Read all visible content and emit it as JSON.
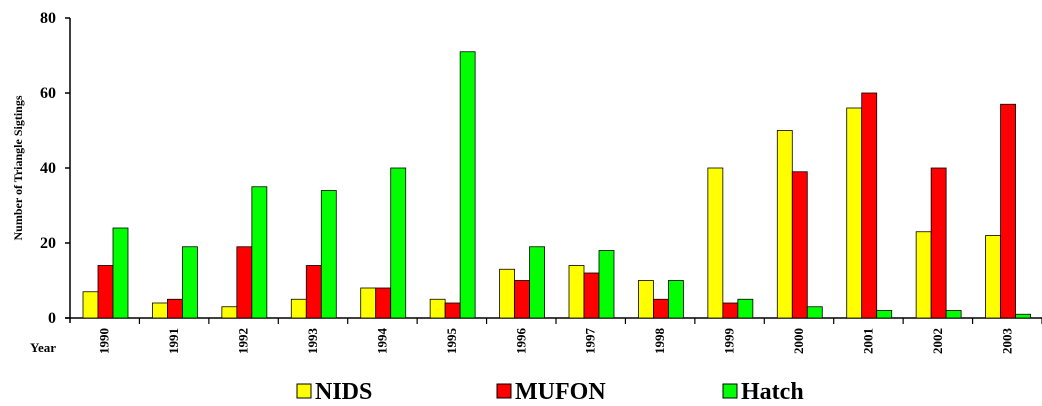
{
  "chart_data": {
    "type": "bar",
    "title": "",
    "xlabel": "Year",
    "ylabel": "Number of Triangle Sigtings",
    "ylim": [
      0,
      80
    ],
    "yticks": [
      0,
      20,
      40,
      60,
      80
    ],
    "grid": false,
    "legend_position": "bottom",
    "categories": [
      "1990",
      "1991",
      "1992",
      "1993",
      "1994",
      "1995",
      "1996",
      "1997",
      "1998",
      "1999",
      "2000",
      "2001",
      "2002",
      "2003"
    ],
    "series": [
      {
        "name": "NIDS",
        "color": "#ffff00",
        "values": [
          7,
          4,
          3,
          5,
          8,
          5,
          13,
          14,
          10,
          40,
          50,
          56,
          23,
          22
        ]
      },
      {
        "name": "MUFON",
        "color": "#ff0000",
        "values": [
          14,
          5,
          19,
          14,
          8,
          4,
          10,
          12,
          5,
          4,
          39,
          60,
          40,
          57
        ]
      },
      {
        "name": "Hatch",
        "color": "#00ff00",
        "values": [
          24,
          19,
          35,
          34,
          40,
          71,
          19,
          18,
          10,
          5,
          3,
          2,
          2,
          1
        ]
      }
    ]
  }
}
